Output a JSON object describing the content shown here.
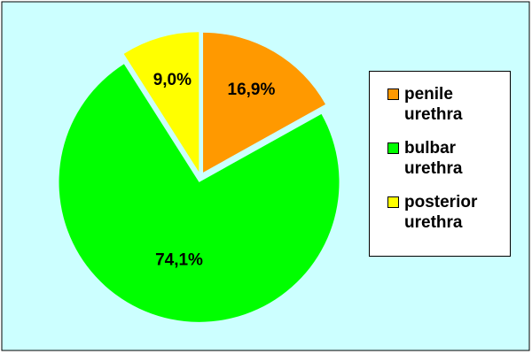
{
  "chart_data": {
    "type": "pie",
    "categories": [
      "penile urethra",
      "bulbar urethra",
      "posterior urethra"
    ],
    "values": [
      16.9,
      74.1,
      9.0
    ],
    "value_labels": [
      "16,9%",
      "74,1%",
      "9,0%"
    ],
    "colors": [
      "#ff9900",
      "#00ff00",
      "#ffff00"
    ],
    "legend": "right"
  }
}
